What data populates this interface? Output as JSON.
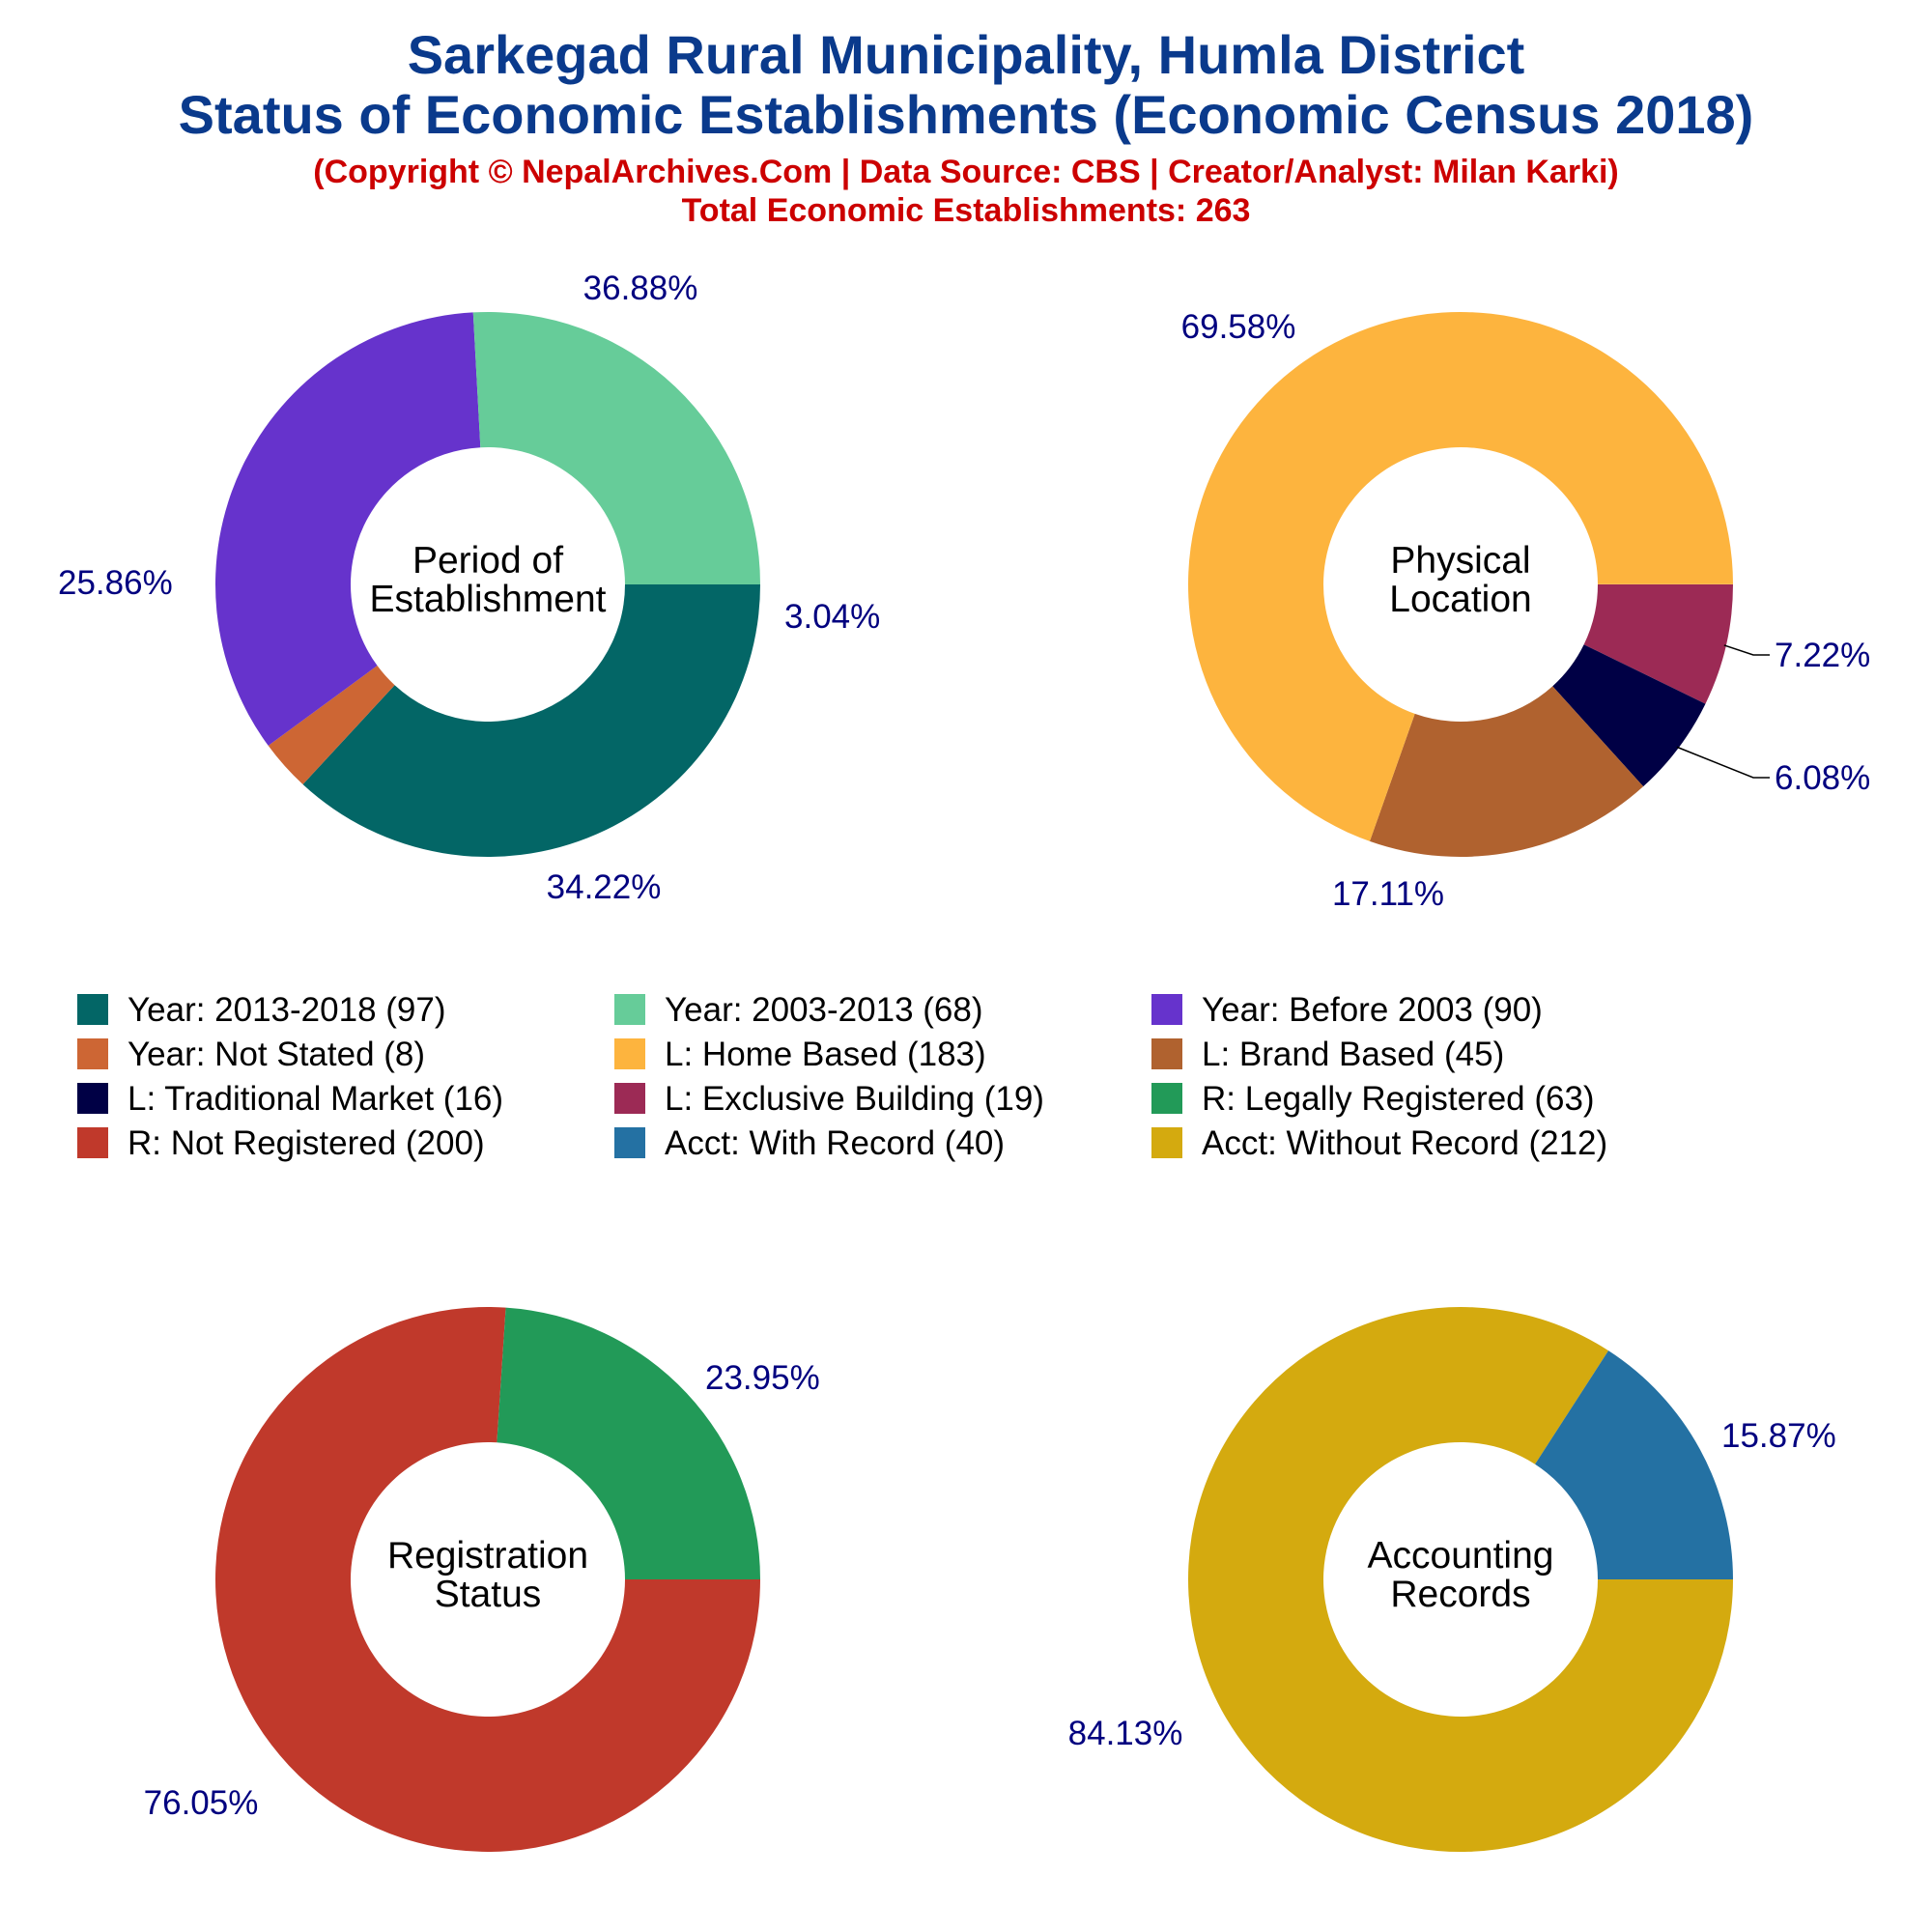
{
  "header": {
    "title_line1": "Sarkegad Rural Municipality, Humla District",
    "title_line2": "Status of Economic Establishments (Economic Census 2018)",
    "subtitle": "(Copyright © NepalArchives.Com | Data Source: CBS | Creator/Analyst: Milan Karki)",
    "total": "Total Economic Establishments: 263"
  },
  "chart_data": [
    {
      "type": "pie",
      "title": "Period of Establishment",
      "center_lines": [
        "Period of",
        "Establishment"
      ],
      "slices": [
        {
          "label": "Year: 2013-2018",
          "count": 97,
          "percent": 36.88,
          "display": "36.88%",
          "color": "#036666"
        },
        {
          "label": "Year: Not Stated",
          "count": 8,
          "percent": 3.04,
          "display": "3.04%",
          "color": "#cd6634"
        },
        {
          "label": "Year: Before 2003",
          "count": 90,
          "percent": 34.22,
          "display": "34.22%",
          "color": "#6633cc"
        },
        {
          "label": "Year: 2003-2013",
          "count": 68,
          "percent": 25.86,
          "display": "25.86%",
          "color": "#66cc99"
        }
      ]
    },
    {
      "type": "pie",
      "title": "Physical Location",
      "center_lines": [
        "Physical",
        "Location"
      ],
      "slices": [
        {
          "label": "L: Exclusive Building",
          "count": 19,
          "percent": 7.22,
          "display": "7.22%",
          "color": "#9c2a55"
        },
        {
          "label": "L: Traditional Market",
          "count": 16,
          "percent": 6.08,
          "display": "6.08%",
          "color": "#000045"
        },
        {
          "label": "L: Brand Based",
          "count": 45,
          "percent": 17.11,
          "display": "17.11%",
          "color": "#b0622f"
        },
        {
          "label": "L: Home Based",
          "count": 183,
          "percent": 69.58,
          "display": "69.58%",
          "color": "#fdb43e"
        }
      ]
    },
    {
      "type": "pie",
      "title": "Registration Status",
      "center_lines": [
        "Registration",
        "Status"
      ],
      "slices": [
        {
          "label": "R: Not Registered",
          "count": 200,
          "percent": 76.05,
          "display": "76.05%",
          "color": "#c0392b"
        },
        {
          "label": "R: Legally Registered",
          "count": 63,
          "percent": 23.95,
          "display": "23.95%",
          "color": "#229a58"
        }
      ]
    },
    {
      "type": "pie",
      "title": "Accounting Records",
      "center_lines": [
        "Accounting",
        "Records"
      ],
      "slices": [
        {
          "label": "Acct: Without Record",
          "count": 212,
          "percent": 84.13,
          "display": "84.13%",
          "color": "#d4aa0f"
        },
        {
          "label": "Acct: With Record",
          "count": 40,
          "percent": 15.87,
          "display": "15.87%",
          "color": "#2471a3"
        }
      ]
    }
  ],
  "legend": [
    {
      "text": "Year: 2013-2018 (97)",
      "color": "#036666"
    },
    {
      "text": "Year: 2003-2013 (68)",
      "color": "#66cc99"
    },
    {
      "text": "Year: Before 2003 (90)",
      "color": "#6633cc"
    },
    {
      "text": "Year: Not Stated (8)",
      "color": "#cd6634"
    },
    {
      "text": "L: Home Based (183)",
      "color": "#fdb43e"
    },
    {
      "text": "L: Brand Based (45)",
      "color": "#b0622f"
    },
    {
      "text": "L: Traditional Market (16)",
      "color": "#000045"
    },
    {
      "text": "L: Exclusive Building (19)",
      "color": "#9c2a55"
    },
    {
      "text": "R: Legally Registered (63)",
      "color": "#229a58"
    },
    {
      "text": "R: Not Registered (200)",
      "color": "#c0392b"
    },
    {
      "text": "Acct: With Record (40)",
      "color": "#2471a3"
    },
    {
      "text": "Acct: Without Record (212)",
      "color": "#d4aa0f"
    }
  ]
}
